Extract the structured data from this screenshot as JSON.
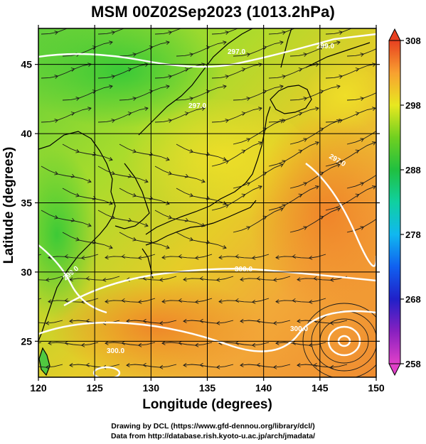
{
  "title": "MSM 00Z02Sep2023 (1013.2hPa)",
  "x_axis": {
    "label": "Longitude (degrees)",
    "range": [
      120,
      150
    ],
    "ticks": [
      120,
      125,
      130,
      135,
      140,
      145,
      150
    ]
  },
  "y_axis": {
    "label": "Latitude  (degrees)",
    "range": [
      22.4,
      47.6
    ],
    "ticks": [
      25,
      30,
      35,
      40,
      45
    ]
  },
  "colorbar": {
    "min": 258,
    "max": 308,
    "ticks": [
      258,
      268,
      278,
      288,
      298,
      308
    ],
    "colors": [
      "#e040c8",
      "#a020c0",
      "#3020c8",
      "#1040e8",
      "#10a0f0",
      "#10d0d0",
      "#10c860",
      "#30c030",
      "#a0e020",
      "#f0e820",
      "#f8b030",
      "#f08030",
      "#e84020"
    ]
  },
  "contour_labels": [
    "299.0",
    "297.0",
    "297.0",
    "299.0",
    "300.0",
    "297.0",
    "300.0",
    "300.0"
  ],
  "credits": {
    "line1": "Drawing by DCL (https://www.gfd-dennou.org/library/dcl/)",
    "line2": "Data from http://database.rish.kyoto-u.ac.jp/arch/jmadata/"
  }
}
